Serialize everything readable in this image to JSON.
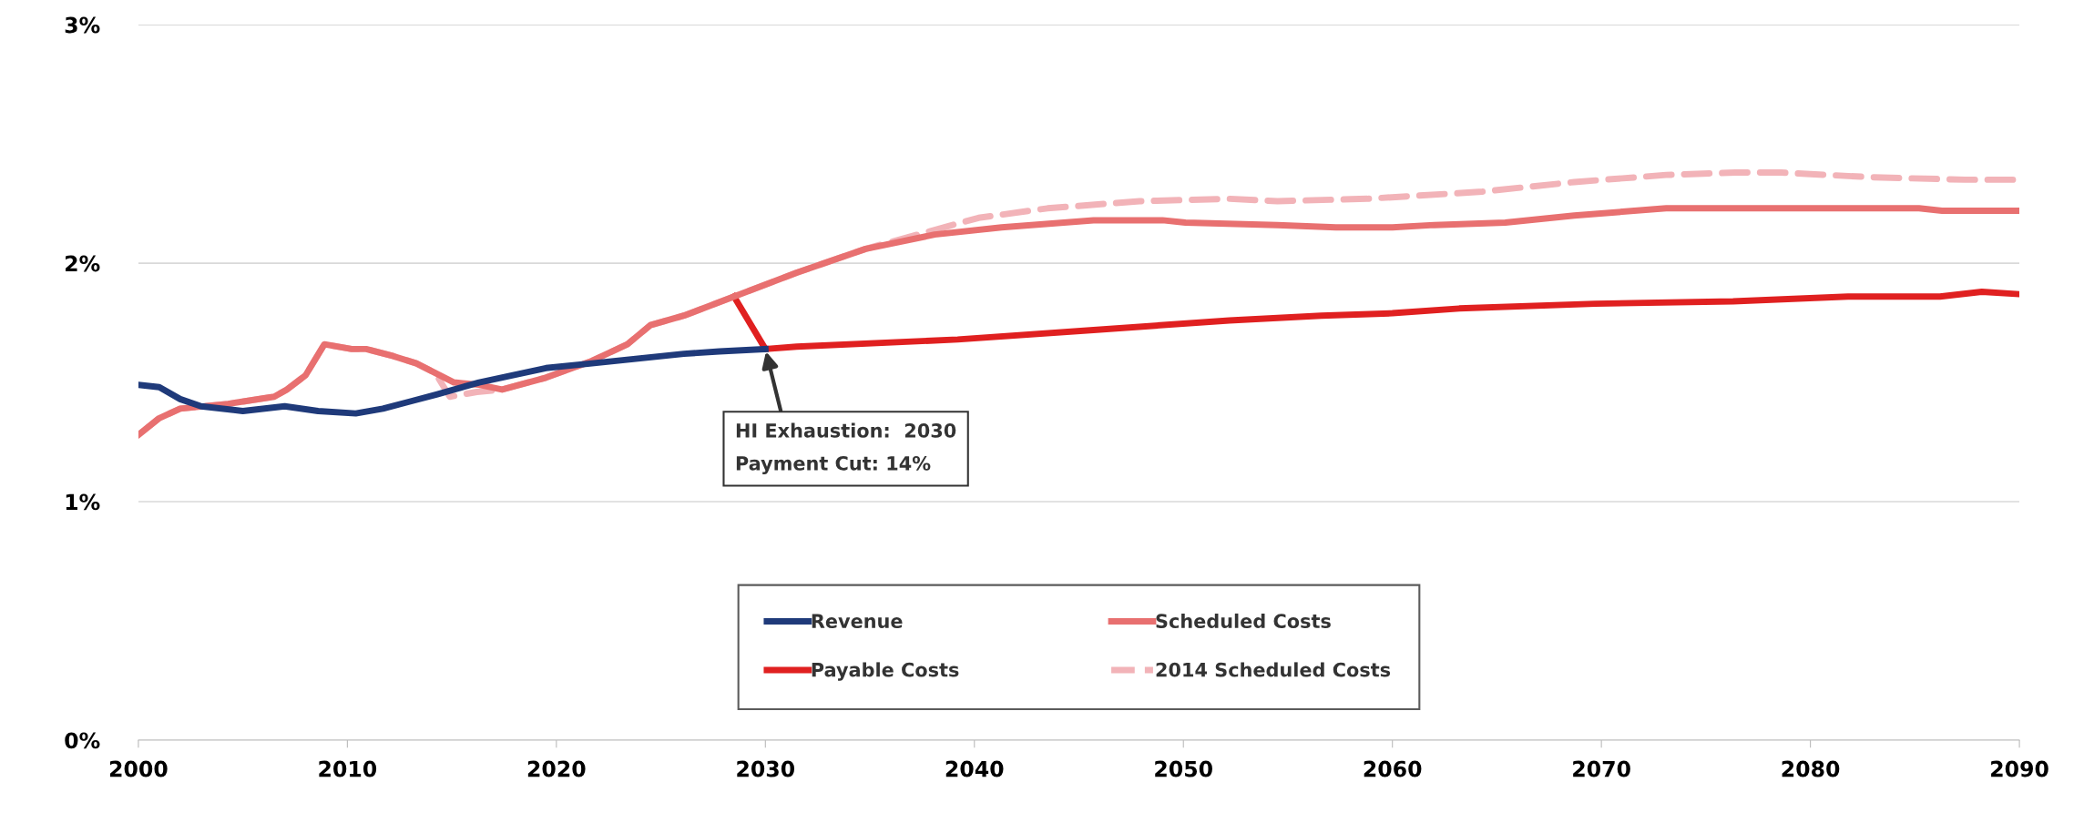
{
  "chart_data": {
    "type": "line",
    "xlim": [
      2000,
      2090
    ],
    "xticks": [
      2000,
      2010,
      2020,
      2030,
      2040,
      2050,
      2060,
      2070,
      2080,
      2090
    ],
    "ylim": [
      0,
      3
    ],
    "yticks": [
      {
        "value": 0,
        "label": "0%"
      },
      {
        "value": 1,
        "label": "1%"
      },
      {
        "value": 2,
        "label": "2%"
      },
      {
        "value": 3,
        "label": "3%"
      }
    ],
    "grid": "y",
    "legend": "bottom",
    "marker": "none",
    "annotations": [
      {
        "text": "HI Exhaustion:  2030\nPayment Cut: 14%",
        "x": 2030,
        "y": 1.64
      }
    ],
    "series": [
      {
        "name": "Revenue",
        "color": "#1f3a7a",
        "line_style": "solid",
        "x": [
          2000,
          2001,
          2002,
          2003,
          2005,
          2007,
          2008.6,
          2010.4,
          2011.7,
          2013,
          2014.3,
          2016.3,
          2019.5,
          2021.7,
          2023.9,
          2026.1,
          2027.8,
          2030
        ],
        "values": [
          1.49,
          1.48,
          1.43,
          1.4,
          1.38,
          1.4,
          1.38,
          1.37,
          1.39,
          1.42,
          1.45,
          1.5,
          1.56,
          1.58,
          1.6,
          1.62,
          1.63,
          1.64
        ]
      },
      {
        "name": "Scheduled Costs",
        "color": "#e87070",
        "line_style": "solid",
        "x": [
          2000,
          2001,
          2002,
          2004.3,
          2006.5,
          2007.1,
          2008,
          2008.9,
          2010.2,
          2010.9,
          2012.2,
          2013.3,
          2014.2,
          2015.1,
          2016.3,
          2017.4,
          2019.5,
          2021.7,
          2023.4,
          2024.5,
          2026.1,
          2028.5,
          2031.5,
          2034.8,
          2038.1,
          2041.3,
          2045.7,
          2049,
          2050.1,
          2054.5,
          2057.3,
          2060,
          2062,
          2065.4,
          2068.7,
          2073.1,
          2085.2,
          2086.3,
          2090
        ],
        "values": [
          1.28,
          1.35,
          1.39,
          1.41,
          1.44,
          1.47,
          1.53,
          1.66,
          1.64,
          1.64,
          1.61,
          1.58,
          1.54,
          1.5,
          1.49,
          1.47,
          1.52,
          1.59,
          1.66,
          1.74,
          1.78,
          1.86,
          1.96,
          2.06,
          2.12,
          2.15,
          2.18,
          2.18,
          2.17,
          2.16,
          2.15,
          2.15,
          2.16,
          2.17,
          2.2,
          2.23,
          2.23,
          2.22,
          2.22
        ]
      },
      {
        "name": "Payable Costs",
        "color": "#e02020",
        "line_style": "solid",
        "x": [
          2028.5,
          2030,
          2031.5,
          2039.2,
          2045.7,
          2052.2,
          2056.6,
          2060,
          2063.2,
          2069.7,
          2076.3,
          2081.8,
          2086.2,
          2088.2,
          2090
        ],
        "values": [
          1.86,
          1.64,
          1.65,
          1.68,
          1.72,
          1.76,
          1.78,
          1.79,
          1.81,
          1.83,
          1.84,
          1.86,
          1.86,
          1.88,
          1.87
        ]
      },
      {
        "name": "2014 Scheduled Costs",
        "color": "#f2b3b8",
        "line_style": "dashed",
        "x": [
          2000,
          2001,
          2002,
          2004.3,
          2006.5,
          2007.1,
          2008,
          2008.9,
          2010.2,
          2010.9,
          2012.2,
          2013.3,
          2014.2,
          2014.9,
          2016.2,
          2017.4,
          2019.5,
          2021.7,
          2023.4,
          2024.5,
          2026.1,
          2028.5,
          2031.5,
          2034.8,
          2040.2,
          2043.5,
          2047.9,
          2052.2,
          2054.5,
          2058.8,
          2062.5,
          2064.3,
          2068.7,
          2073.1,
          2076.4,
          2078.6,
          2083,
          2087.4,
          2090
        ],
        "values": [
          1.28,
          1.35,
          1.39,
          1.41,
          1.44,
          1.47,
          1.53,
          1.66,
          1.64,
          1.64,
          1.61,
          1.58,
          1.54,
          1.44,
          1.46,
          1.47,
          1.52,
          1.59,
          1.66,
          1.74,
          1.78,
          1.86,
          1.96,
          2.06,
          2.19,
          2.23,
          2.26,
          2.27,
          2.26,
          2.27,
          2.29,
          2.3,
          2.34,
          2.37,
          2.38,
          2.38,
          2.36,
          2.35,
          2.35
        ]
      }
    ]
  }
}
